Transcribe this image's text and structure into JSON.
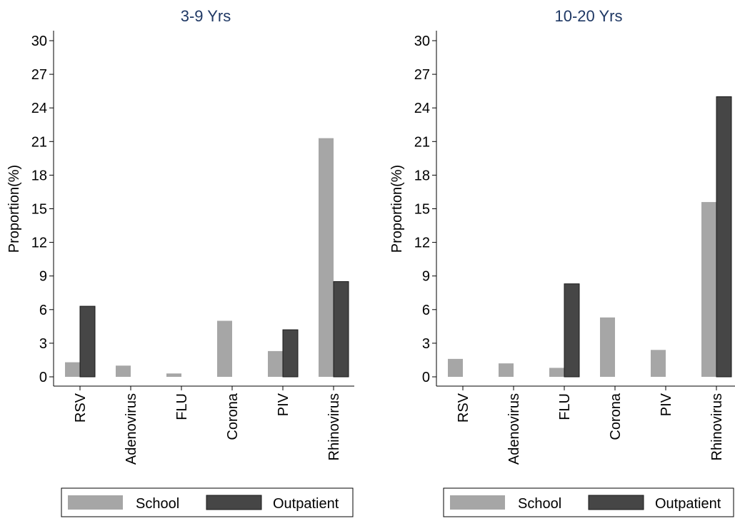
{
  "chart_data": [
    {
      "type": "bar",
      "title": "3-9 Yrs",
      "ylabel": "Proportion(%)",
      "xlabel": "",
      "ylim": [
        0,
        30
      ],
      "yticks": [
        0,
        3,
        6,
        9,
        12,
        15,
        18,
        21,
        24,
        27,
        30
      ],
      "categories": [
        "RSV",
        "Adenovirus",
        "FLU",
        "Corona",
        "PIV",
        "Rhinovirus"
      ],
      "series": [
        {
          "name": "School",
          "color": "#a6a6a6",
          "values": [
            1.3,
            1.0,
            0.3,
            5.0,
            2.3,
            21.3
          ]
        },
        {
          "name": "Outpatient",
          "color": "#464646",
          "values": [
            6.3,
            0,
            0,
            0,
            4.2,
            8.5
          ]
        }
      ],
      "legend": "bottom",
      "grid": false
    },
    {
      "type": "bar",
      "title": "10-20 Yrs",
      "ylabel": "Proportion(%)",
      "xlabel": "",
      "ylim": [
        0,
        30
      ],
      "yticks": [
        0,
        3,
        6,
        9,
        12,
        15,
        18,
        21,
        24,
        27,
        30
      ],
      "categories": [
        "RSV",
        "Adenovirus",
        "FLU",
        "Corona",
        "PIV",
        "Rhinovirus"
      ],
      "series": [
        {
          "name": "School",
          "color": "#a6a6a6",
          "values": [
            1.6,
            1.2,
            0.8,
            5.3,
            2.4,
            15.6
          ]
        },
        {
          "name": "Outpatient",
          "color": "#464646",
          "values": [
            0,
            0,
            8.3,
            0,
            0,
            25.0
          ]
        }
      ],
      "legend": "bottom",
      "grid": false
    }
  ],
  "title_color": "#1f3864"
}
